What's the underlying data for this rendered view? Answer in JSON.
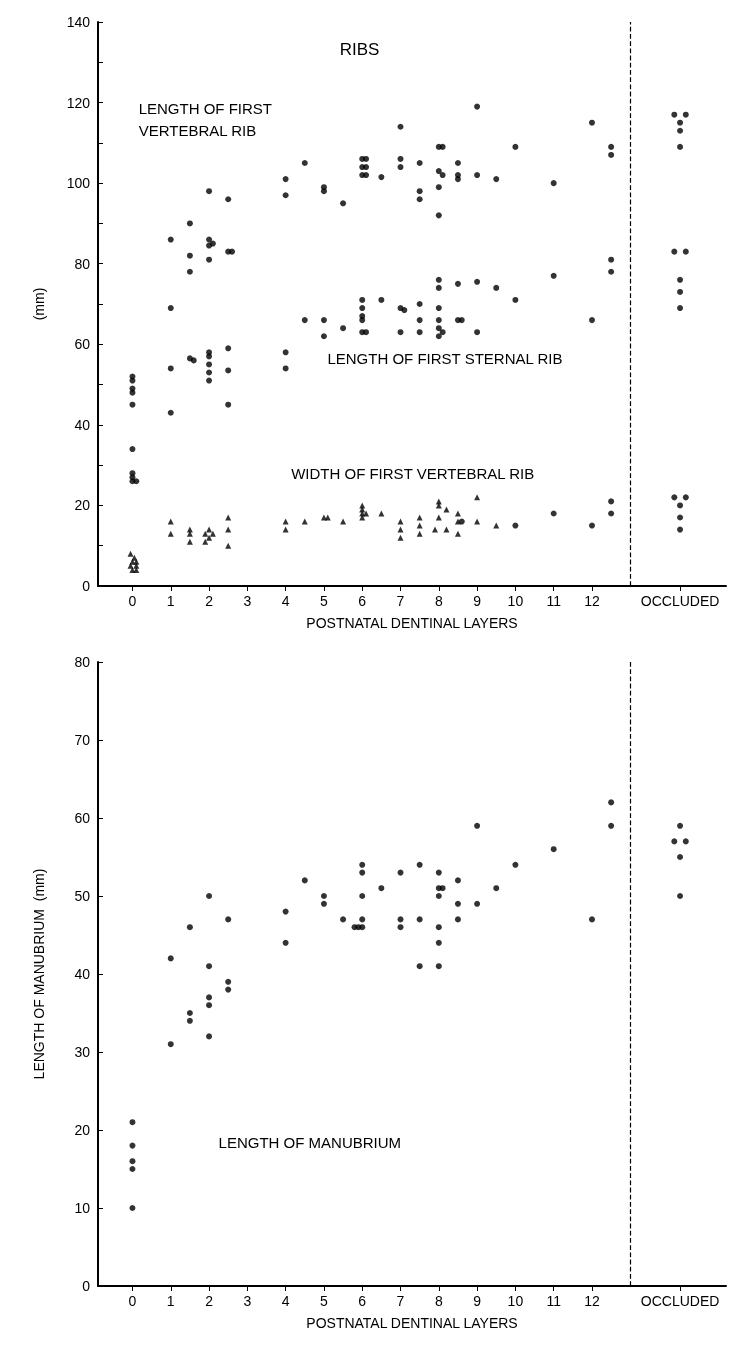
{
  "chart_data": [
    {
      "type": "scatter",
      "title": "RIBS",
      "xlabel": "POSTNATAL DENTINAL LAYERS",
      "ylabel": "(mm)",
      "xlim": [
        -0.9,
        15.5
      ],
      "xticks": [
        0,
        1,
        2,
        3,
        4,
        5,
        6,
        7,
        8,
        9,
        10,
        11,
        12,
        {
          "value": 14.3,
          "label": "OCCLUDED"
        }
      ],
      "ylim": [
        0,
        140
      ],
      "yticks": [
        0,
        {
          "value": 10,
          "label": null
        },
        20,
        {
          "value": 30,
          "label": null
        },
        40,
        {
          "value": 50,
          "label": null
        },
        60,
        {
          "value": 70,
          "label": null
        },
        80,
        {
          "value": 90,
          "label": null
        },
        100,
        {
          "value": 110,
          "label": null
        },
        120,
        {
          "value": 130,
          "label": null
        },
        140
      ],
      "grid": false,
      "ref_lines": [
        {
          "axis": "x",
          "value": 13,
          "line_style": "dashed",
          "color": "#000000"
        }
      ],
      "annotations": [
        "LENGTH OF FIRST\nVERTEBRAL RIB",
        "LENGTH OF FIRST STERNAL RIB",
        "WIDTH OF FIRST VERTEBRAL RIB"
      ],
      "series": [
        {
          "color": "#000000",
          "marker": "circle",
          "x": [
            0,
            0,
            0,
            0,
            0,
            1,
            1,
            1.5,
            1.5,
            1.5,
            2,
            2,
            2.1,
            2,
            2,
            2.5,
            2.5,
            2.6,
            4,
            4,
            4.5,
            5,
            5,
            5.5,
            6,
            6.1,
            6,
            6.1,
            6,
            6.1,
            6.5,
            7,
            7,
            7,
            7.5,
            7.5,
            7.5,
            8,
            8.1,
            8,
            8.1,
            8,
            8.5,
            8.5,
            9,
            9,
            9.5,
            8,
            8.5,
            10,
            11,
            12,
            12.5,
            12.5,
            14.15,
            14.45,
            14.3,
            14.3,
            14.3
          ],
          "values": [
            52,
            51,
            49,
            48,
            45,
            86,
            69,
            90,
            82,
            78,
            98,
            86,
            85,
            84.5,
            81,
            96,
            83,
            83,
            101,
            97,
            105,
            99,
            98,
            95,
            106,
            106,
            104,
            104,
            102,
            102,
            101.5,
            114,
            106,
            104,
            105,
            98,
            96,
            109,
            109,
            103,
            102,
            92,
            102,
            101,
            119,
            102,
            101,
            99,
            105,
            109,
            100,
            115,
            109,
            107,
            117,
            117,
            115,
            113,
            109
          ]
        },
        {
          "color": "#000000",
          "marker": "circle",
          "x": [
            0,
            0,
            0,
            0,
            0.1,
            1,
            1,
            1.5,
            1.6,
            2,
            2,
            2,
            2,
            2,
            2.5,
            2.5,
            2.5,
            4,
            4,
            4.5,
            5,
            5,
            5.5,
            6,
            6,
            6,
            6,
            6,
            6.1,
            6.5,
            7,
            7.1,
            7,
            7.5,
            7.5,
            7.5,
            8,
            8,
            8,
            8,
            8,
            8.1,
            8.5,
            8.6,
            9,
            9,
            9.5,
            8,
            8.5,
            10,
            11,
            12,
            12.5,
            12.5,
            14.15,
            14.45,
            14.3,
            14.3,
            14.3
          ],
          "values": [
            34,
            28,
            27,
            26,
            26,
            54,
            43,
            56.5,
            56,
            58,
            57,
            55,
            53,
            51,
            59,
            53.5,
            45,
            58,
            54,
            66,
            66,
            62,
            64,
            71,
            69,
            67,
            66,
            63,
            63,
            71,
            69,
            68.5,
            63,
            70,
            66,
            63,
            76,
            74,
            69,
            66,
            64,
            63,
            66,
            66,
            75.5,
            63,
            74,
            62,
            75,
            71,
            77,
            66,
            81,
            78,
            83,
            83,
            76,
            73,
            69
          ]
        },
        {
          "color": "#000000",
          "marker": "triangle",
          "x": [
            -0.05,
            0.05,
            0,
            0.1,
            0,
            0.1,
            -0.05,
            0.1,
            1,
            1,
            1.5,
            1.5,
            1.5,
            2,
            1.9,
            2.1,
            2,
            1.9,
            2.5,
            2.5,
            2.5,
            4,
            4,
            4.5,
            5,
            5.1,
            5.5,
            6,
            6,
            6,
            6,
            6.1,
            6.5,
            7,
            7,
            7,
            7.5,
            7.5,
            7.5,
            8,
            8,
            8.2,
            8,
            7.9,
            8.2,
            8.5,
            8.5,
            8.5,
            9,
            9,
            9.5
          ],
          "values": [
            8,
            7,
            6,
            5,
            4,
            4,
            5,
            6,
            16,
            13,
            14,
            13,
            11,
            14,
            13,
            13,
            12,
            11,
            17,
            14,
            10,
            16,
            14,
            16,
            17,
            17,
            16,
            20,
            19,
            18,
            17,
            18,
            18,
            16,
            14,
            12,
            17,
            15,
            13,
            21,
            20,
            19,
            17,
            14,
            14,
            18,
            16,
            13,
            22,
            16,
            15
          ]
        },
        {
          "color": "#000000",
          "marker": "circle",
          "x": [
            8.6,
            10,
            11,
            12,
            12.5,
            12.5,
            14.15,
            14.45,
            14.3,
            14.3,
            14.3
          ],
          "values": [
            16,
            15,
            18,
            15,
            21,
            18,
            22,
            22,
            20,
            17,
            14
          ]
        }
      ]
    },
    {
      "type": "scatter",
      "xlabel": "POSTNATAL DENTINAL LAYERS",
      "ylabel": "LENGTH OF MANUBRIUM  (mm)",
      "xlim": [
        -0.9,
        15.5
      ],
      "xticks": [
        0,
        1,
        2,
        3,
        4,
        5,
        6,
        7,
        8,
        9,
        10,
        11,
        12,
        {
          "value": 14.3,
          "label": "OCCLUDED"
        }
      ],
      "ylim": [
        0,
        80
      ],
      "yticks": [
        0,
        10,
        20,
        30,
        40,
        50,
        60,
        70,
        80
      ],
      "grid": false,
      "ref_lines": [
        {
          "axis": "x",
          "value": 13,
          "line_style": "dashed",
          "color": "#000000"
        }
      ],
      "annotations": [
        "LENGTH OF MANUBRIUM"
      ],
      "series": [
        {
          "color": "#000000",
          "marker": "circle",
          "x": [
            0,
            0,
            0,
            0,
            0,
            1,
            1,
            1.5,
            1.5,
            1.5,
            2,
            2,
            2,
            2,
            2,
            2.5,
            2.5,
            2.5,
            4,
            4,
            4.5,
            5,
            5,
            5.5,
            5.8,
            6,
            6,
            6,
            6,
            6,
            5.9,
            6.5,
            7,
            7,
            7,
            7.5,
            7.5,
            7.5,
            8,
            8.1,
            8,
            8,
            8,
            8,
            8.5,
            8.5,
            9,
            9,
            9.5,
            8,
            8.5,
            10,
            11,
            12,
            12.5,
            12.5,
            14.3,
            14.15,
            14.45,
            14.3,
            14.3
          ],
          "values": [
            21,
            18,
            16,
            15,
            10,
            42,
            31,
            46,
            35,
            34,
            50,
            41,
            37,
            36,
            32,
            47,
            39,
            38,
            48,
            44,
            52,
            50,
            49,
            47,
            46,
            54,
            53,
            50,
            47,
            46,
            46,
            51,
            53,
            47,
            46,
            54,
            47,
            41,
            51,
            51,
            50,
            46,
            44,
            41,
            52,
            47,
            59,
            49,
            51,
            53,
            49,
            54,
            56,
            47,
            62,
            59,
            59,
            57,
            57,
            55,
            50
          ]
        }
      ]
    }
  ]
}
